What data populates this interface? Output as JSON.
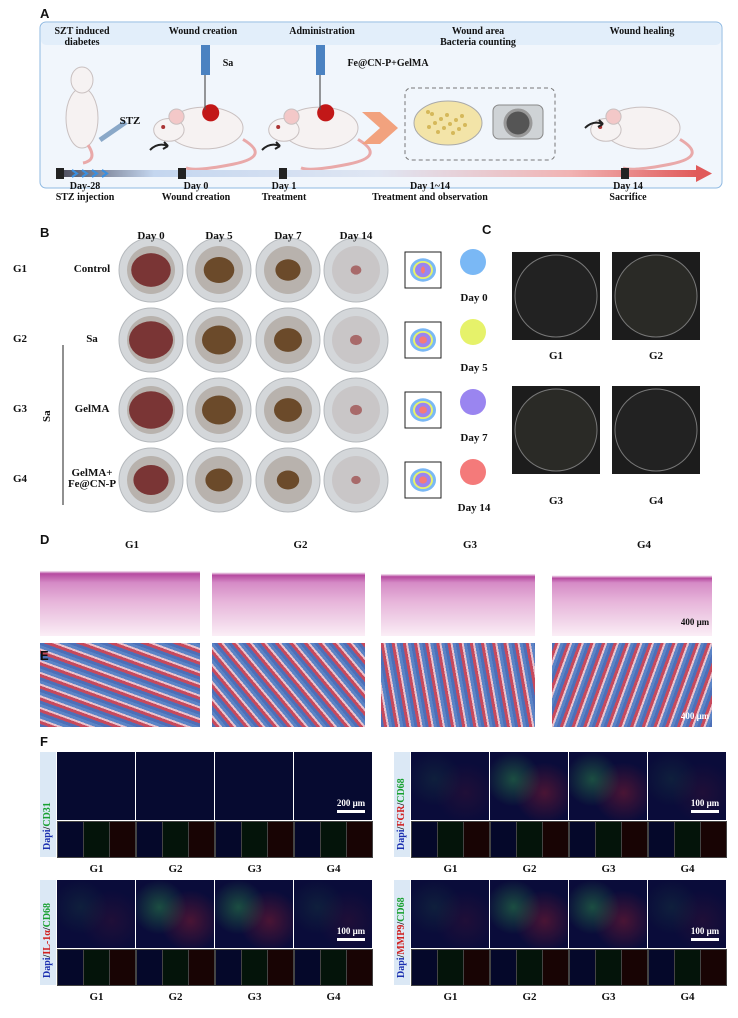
{
  "panel_a": {
    "label": "A",
    "steps": [
      "SZT induced\ndiabetes",
      "Wound creation",
      "Administration",
      "Wound  area\nBacteria counting",
      "Wound healing"
    ],
    "reagents": [
      "Sa",
      "Fe@CN-P+GelMA"
    ],
    "injection": "STZ",
    "timeline": [
      {
        "day": "Day-28",
        "event": "STZ injection"
      },
      {
        "day": "Day 0",
        "event": "Wound creation"
      },
      {
        "day": "Day 1",
        "event": "Treatment"
      },
      {
        "day": "Day 1~14",
        "event": "Treatment and observation"
      },
      {
        "day": "Day 14",
        "event": "Sacrifice"
      }
    ]
  },
  "panel_b": {
    "label": "B",
    "days": [
      "Day 0",
      "Day 5",
      "Day 7",
      "Day 14"
    ],
    "groups": [
      "G1",
      "G2",
      "G3",
      "G4"
    ],
    "treatments": [
      "Control",
      "Sa",
      "GelMA",
      "GelMA+\nFe@CN-P"
    ],
    "infection": "Sa",
    "legend": [
      "Day 0",
      "Day 5",
      "Day 7",
      "Day 14"
    ]
  },
  "panel_c": {
    "label": "C",
    "groups": [
      "G1",
      "G2",
      "G3",
      "G4"
    ]
  },
  "panel_d": {
    "label": "D",
    "groups": [
      "G1",
      "G2",
      "G3",
      "G4"
    ],
    "scale_bar": "400 μm"
  },
  "panel_e": {
    "label": "E",
    "scale_bar": "400 μm"
  },
  "panel_f": {
    "label": "F",
    "panels": [
      {
        "stain": [
          "Dapi",
          "/",
          "CD31"
        ],
        "scale_bar": "200 μm",
        "groups": [
          "G1",
          "G2",
          "G3",
          "G4"
        ]
      },
      {
        "stain": [
          "Dapi",
          "/",
          "FGR",
          "/",
          "CD68"
        ],
        "scale_bar": "100 μm",
        "groups": [
          "G1",
          "G2",
          "G3",
          "G4"
        ]
      },
      {
        "stain": [
          "Dapi",
          "/",
          "IL-1α",
          "/",
          "CD68"
        ],
        "scale_bar": "100 μm",
        "groups": [
          "G1",
          "G2",
          "G3",
          "G4"
        ]
      },
      {
        "stain": [
          "Dapi",
          "/",
          "MMP9",
          "/",
          "CD68"
        ],
        "scale_bar": "100 μm",
        "groups": [
          "G1",
          "G2",
          "G3",
          "G4"
        ]
      }
    ]
  }
}
